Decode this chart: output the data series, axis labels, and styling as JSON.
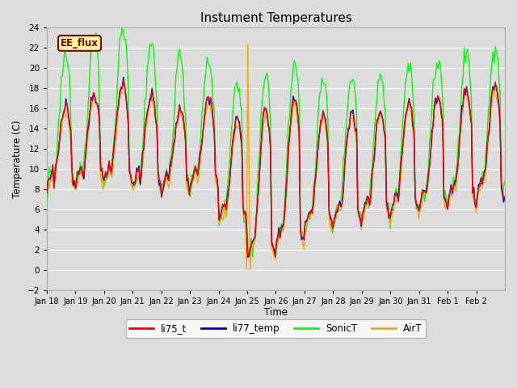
{
  "title": "Instument Temperatures",
  "ylabel": "Temperature (C)",
  "xlabel": "Time",
  "ylim": [
    -2,
    24
  ],
  "yticks": [
    -2,
    0,
    2,
    4,
    6,
    8,
    10,
    12,
    14,
    16,
    18,
    20,
    22,
    24
  ],
  "xtick_labels": [
    "Jan 18",
    "Jan 19",
    "Jan 20",
    "Jan 21",
    "Jan 22",
    "Jan 23",
    "Jan 24",
    "Jan 25",
    "Jan 26",
    "Jan 27",
    "Jan 28",
    "Jan 29",
    "Jan 30",
    "Jan 31",
    "Feb 1",
    "Feb 2"
  ],
  "annotation_text": "EE_flux",
  "annotation_color": "#8B0000",
  "annotation_bg": "#FFFF99",
  "li75_color": "#FF0000",
  "li77_color": "#0000CC",
  "sonic_color": "#00FF00",
  "air_color": "#FFA500",
  "legend_labels": [
    "li75_t",
    "li77_temp",
    "SonicT",
    "AirT"
  ],
  "legend_colors": [
    "#FF0000",
    "#0000CC",
    "#00FF00",
    "#FFA500"
  ],
  "bg_color": "#DCDCDC",
  "plot_bg": "#DCDCDC",
  "grid_color": "#FFFFFF",
  "lw": 1.0
}
